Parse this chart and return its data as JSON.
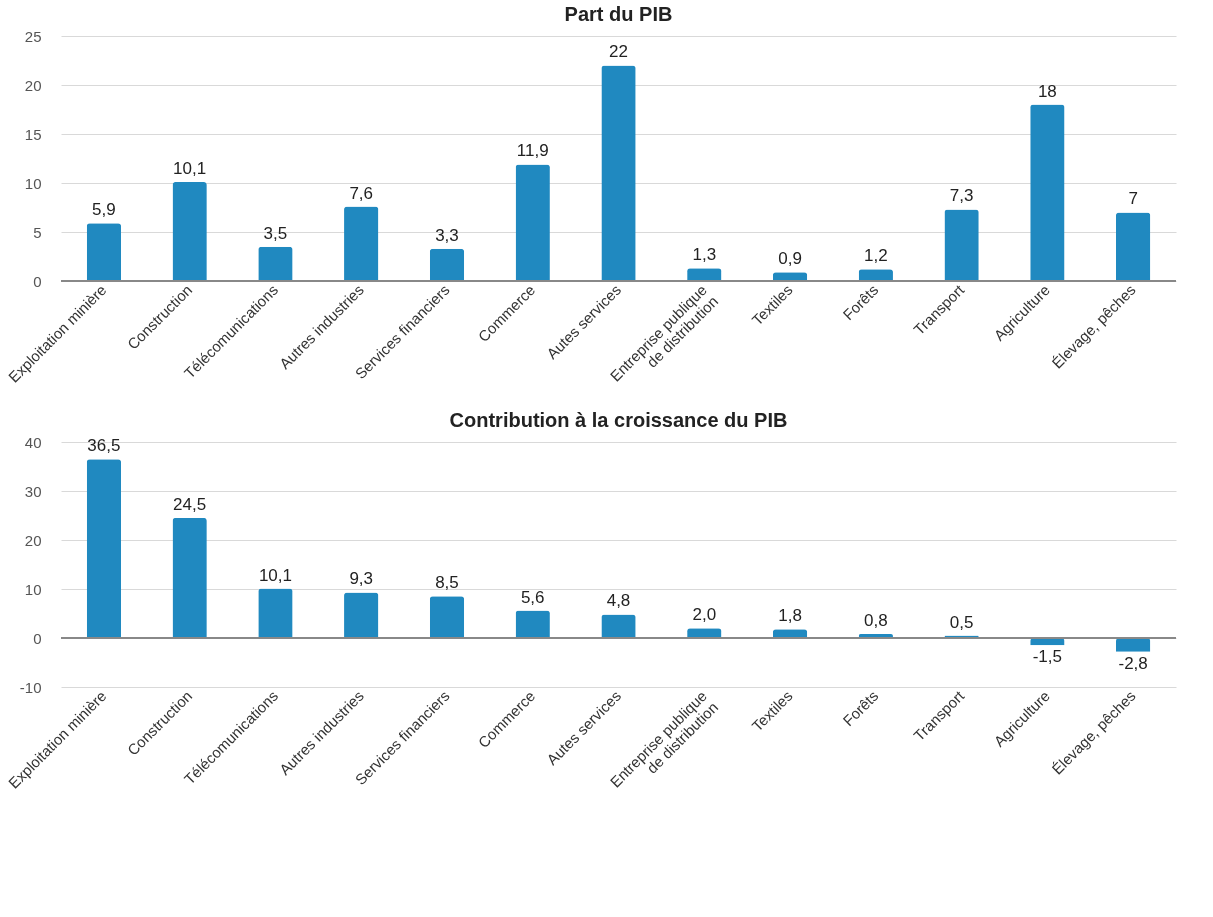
{
  "chart_data": [
    {
      "type": "bar",
      "title": "Part du PIB",
      "categories": [
        "Exploitation minière",
        "Construction",
        "Télécomunications",
        "Autres industries",
        "Services financiers",
        "Commerce",
        "Autes services",
        "Entreprise publique\nde distribution",
        "Textiles",
        "Forêts",
        "Transport",
        "Agriculture",
        "Élevage, pêches"
      ],
      "values": [
        5.9,
        10.1,
        3.5,
        7.6,
        3.3,
        11.9,
        22,
        1.3,
        0.9,
        1.2,
        7.3,
        18,
        7
      ],
      "value_labels": [
        "5,9",
        "10,1",
        "3,5",
        "7,6",
        "3,3",
        "11,9",
        "22",
        "1,3",
        "0,9",
        "1,2",
        "7,3",
        "18",
        "7"
      ],
      "color": "#2089c0",
      "ylim": [
        0,
        25
      ],
      "yticks": [
        0,
        5,
        10,
        15,
        20,
        25
      ],
      "grid": "y"
    },
    {
      "type": "bar",
      "title": "Contribution à la croissance du PIB",
      "categories": [
        "Exploitation minière",
        "Construction",
        "Télécomunications",
        "Autres industries",
        "Services financiers",
        "Commerce",
        "Autes services",
        "Entreprise publique\nde distribution",
        "Textiles",
        "Forêts",
        "Transport",
        "Agriculture",
        "Élevage, pêches"
      ],
      "values": [
        36.5,
        24.5,
        10.1,
        9.3,
        8.5,
        5.6,
        4.8,
        2.0,
        1.8,
        0.8,
        0.5,
        -1.5,
        -2.8
      ],
      "value_labels": [
        "36,5",
        "24,5",
        "10,1",
        "9,3",
        "8,5",
        "5,6",
        "4,8",
        "2,0",
        "1,8",
        "0,8",
        "0,5",
        "-1,5",
        "-2,8"
      ],
      "color": "#2089c0",
      "ylim": [
        -10,
        40
      ],
      "yticks": [
        -10,
        0,
        10,
        20,
        30,
        40
      ],
      "grid": "y"
    }
  ]
}
